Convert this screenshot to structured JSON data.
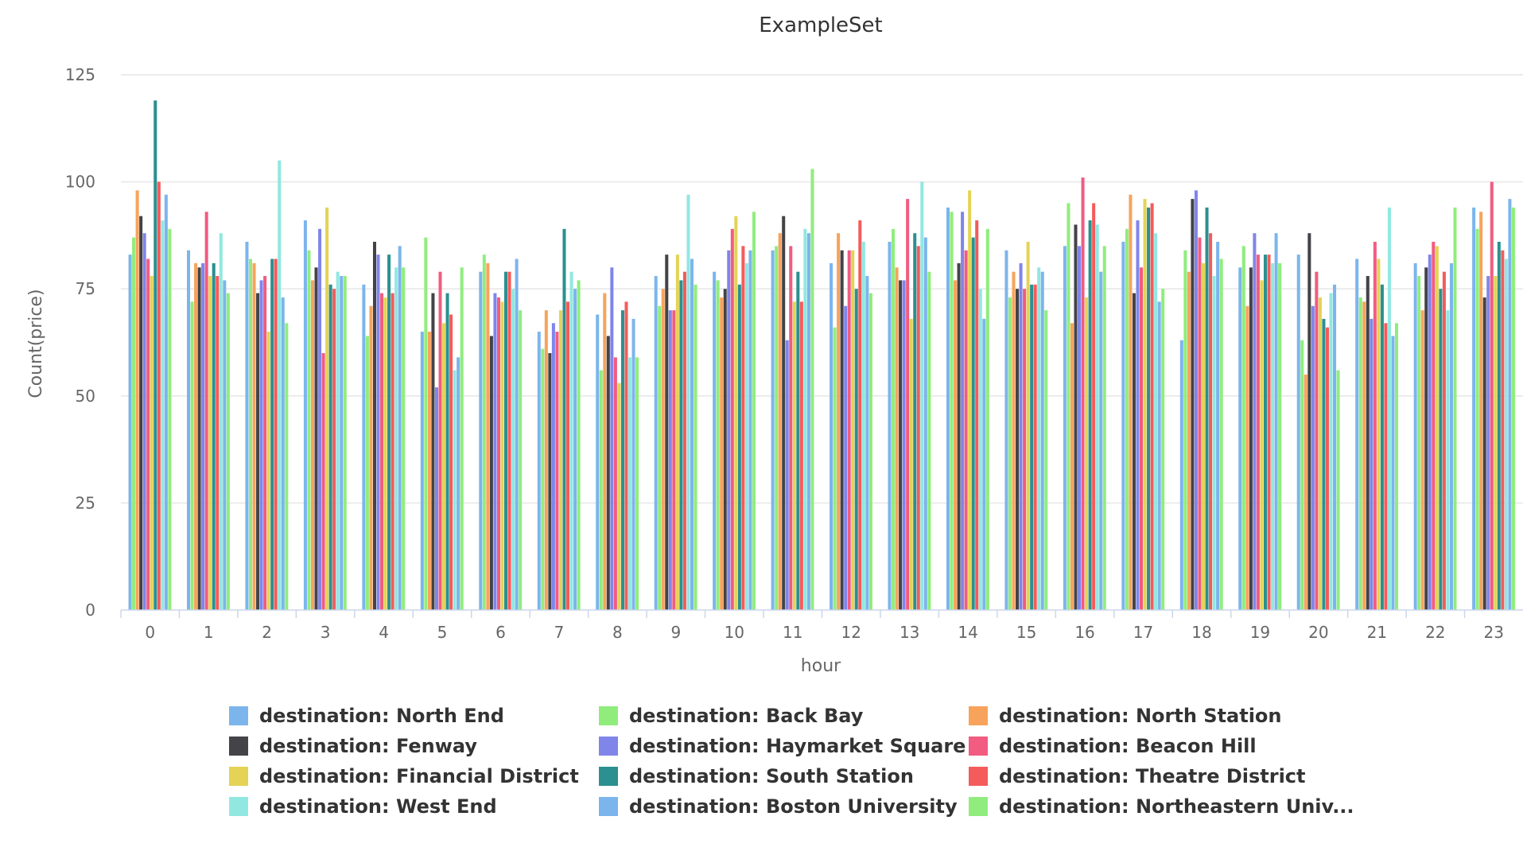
{
  "chart_data": {
    "type": "bar",
    "title": "ExampleSet",
    "xlabel": "hour",
    "ylabel": "Count(price)",
    "ylim": [
      0,
      125
    ],
    "yticks": [
      0,
      25,
      50,
      75,
      100,
      125
    ],
    "grid": true,
    "legend_position": "bottom",
    "categories": [
      "0",
      "1",
      "2",
      "3",
      "4",
      "5",
      "6",
      "7",
      "8",
      "9",
      "10",
      "11",
      "12",
      "13",
      "14",
      "15",
      "16",
      "17",
      "18",
      "19",
      "20",
      "21",
      "22",
      "23"
    ],
    "series": [
      {
        "name": "destination: North End",
        "color": "#7cb5ec",
        "values": [
          83,
          84,
          86,
          91,
          76,
          65,
          79,
          65,
          69,
          78,
          79,
          84,
          81,
          86,
          94,
          84,
          85,
          86,
          63,
          80,
          83,
          82,
          81,
          94
        ]
      },
      {
        "name": "destination: Back Bay",
        "color": "#90ed7d",
        "values": [
          87,
          72,
          82,
          84,
          64,
          87,
          83,
          61,
          56,
          71,
          77,
          85,
          66,
          89,
          93,
          73,
          95,
          89,
          84,
          85,
          63,
          73,
          78,
          89
        ]
      },
      {
        "name": "destination: North Station",
        "color": "#f7a35c",
        "values": [
          98,
          81,
          81,
          77,
          71,
          65,
          81,
          70,
          74,
          75,
          73,
          88,
          88,
          80,
          77,
          79,
          67,
          97,
          79,
          71,
          55,
          72,
          70,
          93
        ]
      },
      {
        "name": "destination: Fenway",
        "color": "#434348",
        "values": [
          92,
          80,
          74,
          80,
          86,
          74,
          64,
          60,
          64,
          83,
          75,
          92,
          84,
          77,
          81,
          75,
          90,
          74,
          96,
          80,
          88,
          78,
          80,
          73
        ]
      },
      {
        "name": "destination: Haymarket Square",
        "color": "#8085e9",
        "values": [
          88,
          81,
          77,
          89,
          83,
          52,
          74,
          67,
          80,
          70,
          84,
          63,
          71,
          77,
          93,
          81,
          85,
          91,
          98,
          88,
          71,
          68,
          83,
          78
        ]
      },
      {
        "name": "destination: Beacon Hill",
        "color": "#f15c80",
        "values": [
          82,
          93,
          78,
          60,
          74,
          79,
          73,
          65,
          59,
          70,
          89,
          85,
          84,
          96,
          84,
          75,
          101,
          80,
          87,
          83,
          79,
          86,
          86,
          100
        ]
      },
      {
        "name": "destination: Financial District",
        "color": "#e4d354",
        "values": [
          78,
          78,
          65,
          94,
          73,
          67,
          72,
          70,
          53,
          83,
          92,
          72,
          84,
          68,
          98,
          86,
          73,
          96,
          81,
          77,
          73,
          82,
          85,
          78
        ]
      },
      {
        "name": "destination: South Station",
        "color": "#2b908f",
        "values": [
          119,
          81,
          82,
          76,
          83,
          74,
          79,
          89,
          70,
          77,
          76,
          79,
          75,
          88,
          87,
          76,
          91,
          94,
          94,
          83,
          68,
          76,
          75,
          86
        ]
      },
      {
        "name": "destination: Theatre District",
        "color": "#f45b5b",
        "values": [
          100,
          78,
          82,
          75,
          74,
          69,
          79,
          72,
          72,
          79,
          85,
          72,
          91,
          85,
          91,
          76,
          95,
          95,
          88,
          83,
          66,
          67,
          79,
          84
        ]
      },
      {
        "name": "destination: West End",
        "color": "#91e8e1",
        "values": [
          91,
          88,
          105,
          79,
          80,
          56,
          75,
          79,
          59,
          97,
          81,
          89,
          86,
          100,
          75,
          80,
          90,
          88,
          78,
          81,
          74,
          94,
          70,
          82
        ]
      },
      {
        "name": "destination: Boston University",
        "color": "#7cb5ec",
        "values": [
          97,
          77,
          73,
          78,
          85,
          59,
          82,
          75,
          68,
          82,
          84,
          88,
          78,
          87,
          68,
          79,
          79,
          72,
          86,
          88,
          76,
          64,
          81,
          96
        ]
      },
      {
        "name": "destination: Northeastern Univ...",
        "color": "#90ed7d",
        "values": [
          89,
          74,
          67,
          78,
          80,
          80,
          70,
          77,
          59,
          76,
          93,
          103,
          74,
          79,
          89,
          70,
          85,
          75,
          82,
          81,
          56,
          67,
          94,
          94
        ]
      }
    ]
  }
}
